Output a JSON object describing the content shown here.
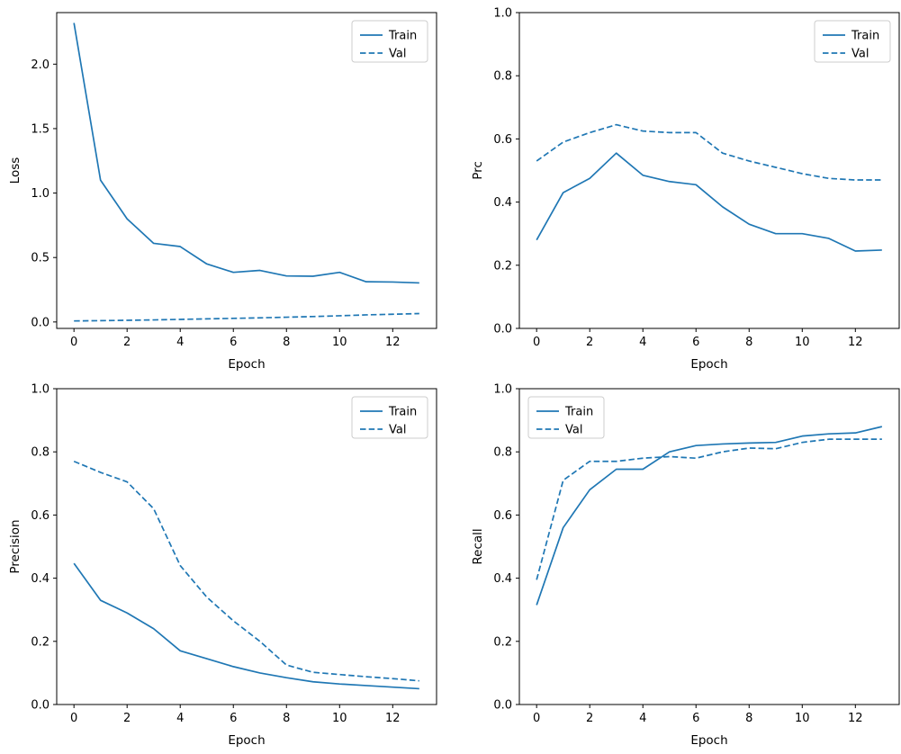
{
  "figure": {
    "background": "#ffffff",
    "line_color": "#1f77b4",
    "axis_color": "#000000",
    "legend_edge_color": "#cccccc"
  },
  "chart_data": [
    {
      "id": "loss",
      "type": "line",
      "title": "",
      "xlabel": "Epoch",
      "ylabel": "Loss",
      "x": [
        0,
        1,
        2,
        3,
        4,
        5,
        6,
        7,
        8,
        9,
        10,
        11,
        12,
        13
      ],
      "series": [
        {
          "name": "Train",
          "style": "solid",
          "values": [
            2.32,
            1.1,
            0.8,
            0.61,
            0.585,
            0.45,
            0.385,
            0.4,
            0.357,
            0.355,
            0.385,
            0.312,
            0.31,
            0.303
          ]
        },
        {
          "name": "Val",
          "style": "dashed",
          "values": [
            0.008,
            0.01,
            0.013,
            0.016,
            0.02,
            0.024,
            0.028,
            0.032,
            0.037,
            0.042,
            0.048,
            0.055,
            0.06,
            0.065
          ]
        }
      ],
      "xlim": [
        -0.65,
        13.65
      ],
      "ylim": [
        -0.05,
        2.4
      ],
      "xticks": [
        0,
        2,
        4,
        6,
        8,
        10,
        12
      ],
      "yticks": [
        0.0,
        0.5,
        1.0,
        1.5,
        2.0
      ],
      "grid": false,
      "legend_pos": "upper-right",
      "legend_labels": [
        "Train",
        "Val"
      ]
    },
    {
      "id": "prc",
      "type": "line",
      "title": "",
      "xlabel": "Epoch",
      "ylabel": "Prc",
      "x": [
        0,
        1,
        2,
        3,
        4,
        5,
        6,
        7,
        8,
        9,
        10,
        11,
        12,
        13
      ],
      "series": [
        {
          "name": "Train",
          "style": "solid",
          "values": [
            0.28,
            0.43,
            0.475,
            0.555,
            0.485,
            0.465,
            0.455,
            0.385,
            0.33,
            0.3,
            0.3,
            0.285,
            0.245,
            0.248
          ]
        },
        {
          "name": "Val",
          "style": "dashed",
          "values": [
            0.53,
            0.59,
            0.62,
            0.645,
            0.625,
            0.62,
            0.62,
            0.555,
            0.53,
            0.51,
            0.49,
            0.475,
            0.47,
            0.47
          ]
        }
      ],
      "xlim": [
        -0.65,
        13.65
      ],
      "ylim": [
        0.0,
        1.0
      ],
      "xticks": [
        0,
        2,
        4,
        6,
        8,
        10,
        12
      ],
      "yticks": [
        0.0,
        0.2,
        0.4,
        0.6,
        0.8,
        1.0
      ],
      "grid": false,
      "legend_pos": "upper-right",
      "legend_labels": [
        "Train",
        "Val"
      ]
    },
    {
      "id": "precision",
      "type": "line",
      "title": "",
      "xlabel": "Epoch",
      "ylabel": "Precision",
      "x": [
        0,
        1,
        2,
        3,
        4,
        5,
        6,
        7,
        8,
        9,
        10,
        11,
        12,
        13
      ],
      "series": [
        {
          "name": "Train",
          "style": "solid",
          "values": [
            0.447,
            0.33,
            0.29,
            0.24,
            0.17,
            0.145,
            0.12,
            0.1,
            0.085,
            0.072,
            0.065,
            0.06,
            0.055,
            0.05
          ]
        },
        {
          "name": "Val",
          "style": "dashed",
          "values": [
            0.77,
            0.735,
            0.705,
            0.62,
            0.44,
            0.34,
            0.265,
            0.2,
            0.125,
            0.102,
            0.095,
            0.088,
            0.082,
            0.075
          ]
        }
      ],
      "xlim": [
        -0.65,
        13.65
      ],
      "ylim": [
        0.0,
        1.0
      ],
      "xticks": [
        0,
        2,
        4,
        6,
        8,
        10,
        12
      ],
      "yticks": [
        0.0,
        0.2,
        0.4,
        0.6,
        0.8,
        1.0
      ],
      "grid": false,
      "legend_pos": "upper-right",
      "legend_labels": [
        "Train",
        "Val"
      ]
    },
    {
      "id": "recall",
      "type": "line",
      "title": "",
      "xlabel": "Epoch",
      "ylabel": "Recall",
      "x": [
        0,
        1,
        2,
        3,
        4,
        5,
        6,
        7,
        8,
        9,
        10,
        11,
        12,
        13
      ],
      "series": [
        {
          "name": "Train",
          "style": "solid",
          "values": [
            0.315,
            0.56,
            0.68,
            0.745,
            0.745,
            0.8,
            0.82,
            0.825,
            0.828,
            0.83,
            0.85,
            0.857,
            0.86,
            0.88
          ]
        },
        {
          "name": "Val",
          "style": "dashed",
          "values": [
            0.395,
            0.71,
            0.77,
            0.77,
            0.78,
            0.785,
            0.78,
            0.8,
            0.812,
            0.81,
            0.83,
            0.84,
            0.84,
            0.84
          ]
        }
      ],
      "xlim": [
        -0.65,
        13.65
      ],
      "ylim": [
        0.0,
        1.0
      ],
      "xticks": [
        0,
        2,
        4,
        6,
        8,
        10,
        12
      ],
      "yticks": [
        0.0,
        0.2,
        0.4,
        0.6,
        0.8,
        1.0
      ],
      "grid": false,
      "legend_pos": "upper-left",
      "legend_labels": [
        "Train",
        "Val"
      ]
    }
  ]
}
